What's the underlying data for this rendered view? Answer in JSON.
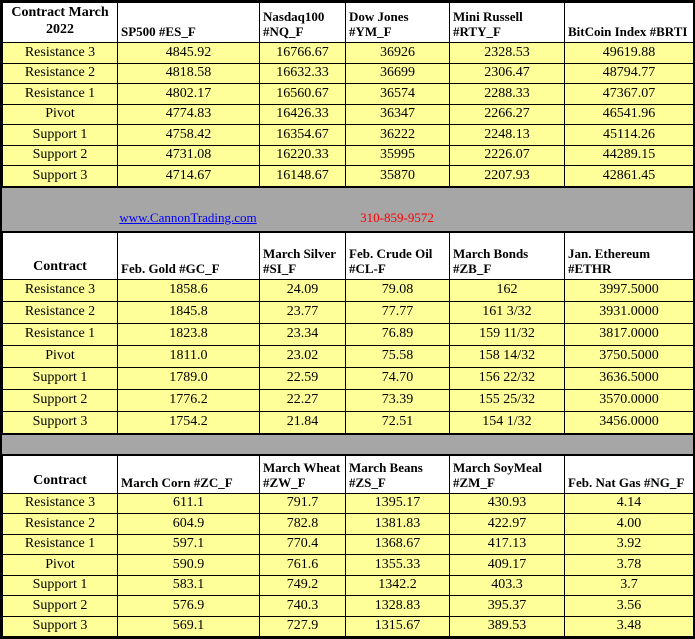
{
  "contact": {
    "website": "www.CannonTrading.com",
    "phone": "310-859-9572"
  },
  "colors": {
    "cell_yellow": "#ffff99",
    "band_gray": "#a6a6a6",
    "link_blue": "#0000ff",
    "phone_red": "#ff0000",
    "border_black": "#000000",
    "header_white": "#ffffff"
  },
  "sections": [
    {
      "corner": [
        "Contract March",
        "2022"
      ],
      "columns": [
        [
          "SP500 #ES_F"
        ],
        [
          "Nasdaq100",
          "#NQ_F"
        ],
        [
          "Dow Jones",
          "#YM_F"
        ],
        [
          "Mini Russell",
          "#RTY_F"
        ],
        [
          "BitCoin Index #BRTI"
        ]
      ],
      "rows": [
        {
          "label": "Resistance 3",
          "values": [
            "4845.92",
            "16766.67",
            "36926",
            "2328.53",
            "49619.88"
          ]
        },
        {
          "label": "Resistance 2",
          "values": [
            "4818.58",
            "16632.33",
            "36699",
            "2306.47",
            "48794.77"
          ]
        },
        {
          "label": "Resistance 1",
          "values": [
            "4802.17",
            "16560.67",
            "36574",
            "2288.33",
            "47367.07"
          ]
        },
        {
          "label": "Pivot",
          "values": [
            "4774.83",
            "16426.33",
            "36347",
            "2266.27",
            "46541.96"
          ]
        },
        {
          "label": "Support 1",
          "values": [
            "4758.42",
            "16354.67",
            "36222",
            "2248.13",
            "45114.26"
          ]
        },
        {
          "label": "Support 2",
          "values": [
            "4731.08",
            "16220.33",
            "35995",
            "2226.07",
            "44289.15"
          ]
        },
        {
          "label": "Support 3",
          "values": [
            "4714.67",
            "16148.67",
            "35870",
            "2207.93",
            "42861.45"
          ]
        }
      ]
    },
    {
      "corner": [
        "Contract"
      ],
      "columns": [
        [
          "Feb. Gold #GC_F"
        ],
        [
          "March Silver",
          "#SI_F"
        ],
        [
          "Feb. Crude Oil",
          "#CL-F"
        ],
        [
          "March Bonds",
          "#ZB_F"
        ],
        [
          "Jan. Ethereum",
          "#ETHR"
        ]
      ],
      "rows": [
        {
          "label": "Resistance 3",
          "values": [
            "1858.6",
            "24.09",
            "79.08",
            "162",
            "3997.5000"
          ]
        },
        {
          "label": "Resistance 2",
          "values": [
            "1845.8",
            "23.77",
            "77.77",
            "161 3/32",
            "3931.0000"
          ]
        },
        {
          "label": "Resistance 1",
          "values": [
            "1823.8",
            "23.34",
            "76.89",
            "159 11/32",
            "3817.0000"
          ]
        },
        {
          "label": "Pivot",
          "values": [
            "1811.0",
            "23.02",
            "75.58",
            "158 14/32",
            "3750.5000"
          ]
        },
        {
          "label": "Support 1",
          "values": [
            "1789.0",
            "22.59",
            "74.70",
            "156 22/32",
            "3636.5000"
          ]
        },
        {
          "label": "Support 2",
          "values": [
            "1776.2",
            "22.27",
            "73.39",
            "155 25/32",
            "3570.0000"
          ]
        },
        {
          "label": "Support 3",
          "values": [
            "1754.2",
            "21.84",
            "72.51",
            "154 1/32",
            "3456.0000"
          ]
        }
      ]
    },
    {
      "corner": [
        "Contract"
      ],
      "columns": [
        [
          "March Corn #ZC_F"
        ],
        [
          "March Wheat",
          "#ZW_F"
        ],
        [
          "March Beans",
          "#ZS_F"
        ],
        [
          "March SoyMeal",
          "#ZM_F"
        ],
        [
          "Feb. Nat Gas #NG_F"
        ]
      ],
      "rows": [
        {
          "label": "Resistance 3",
          "values": [
            "611.1",
            "791.7",
            "1395.17",
            "430.93",
            "4.14"
          ]
        },
        {
          "label": "Resistance 2",
          "values": [
            "604.9",
            "782.8",
            "1381.83",
            "422.97",
            "4.00"
          ]
        },
        {
          "label": "Resistance 1",
          "values": [
            "597.1",
            "770.4",
            "1368.67",
            "417.13",
            "3.92"
          ]
        },
        {
          "label": "Pivot",
          "values": [
            "590.9",
            "761.6",
            "1355.33",
            "409.17",
            "3.78"
          ]
        },
        {
          "label": "Support 1",
          "values": [
            "583.1",
            "749.2",
            "1342.2",
            "403.3",
            "3.7"
          ]
        },
        {
          "label": "Support 2",
          "values": [
            "576.9",
            "740.3",
            "1328.83",
            "395.37",
            "3.56"
          ]
        },
        {
          "label": "Support 3",
          "values": [
            "569.1",
            "727.9",
            "1315.67",
            "389.53",
            "3.48"
          ]
        }
      ]
    }
  ]
}
